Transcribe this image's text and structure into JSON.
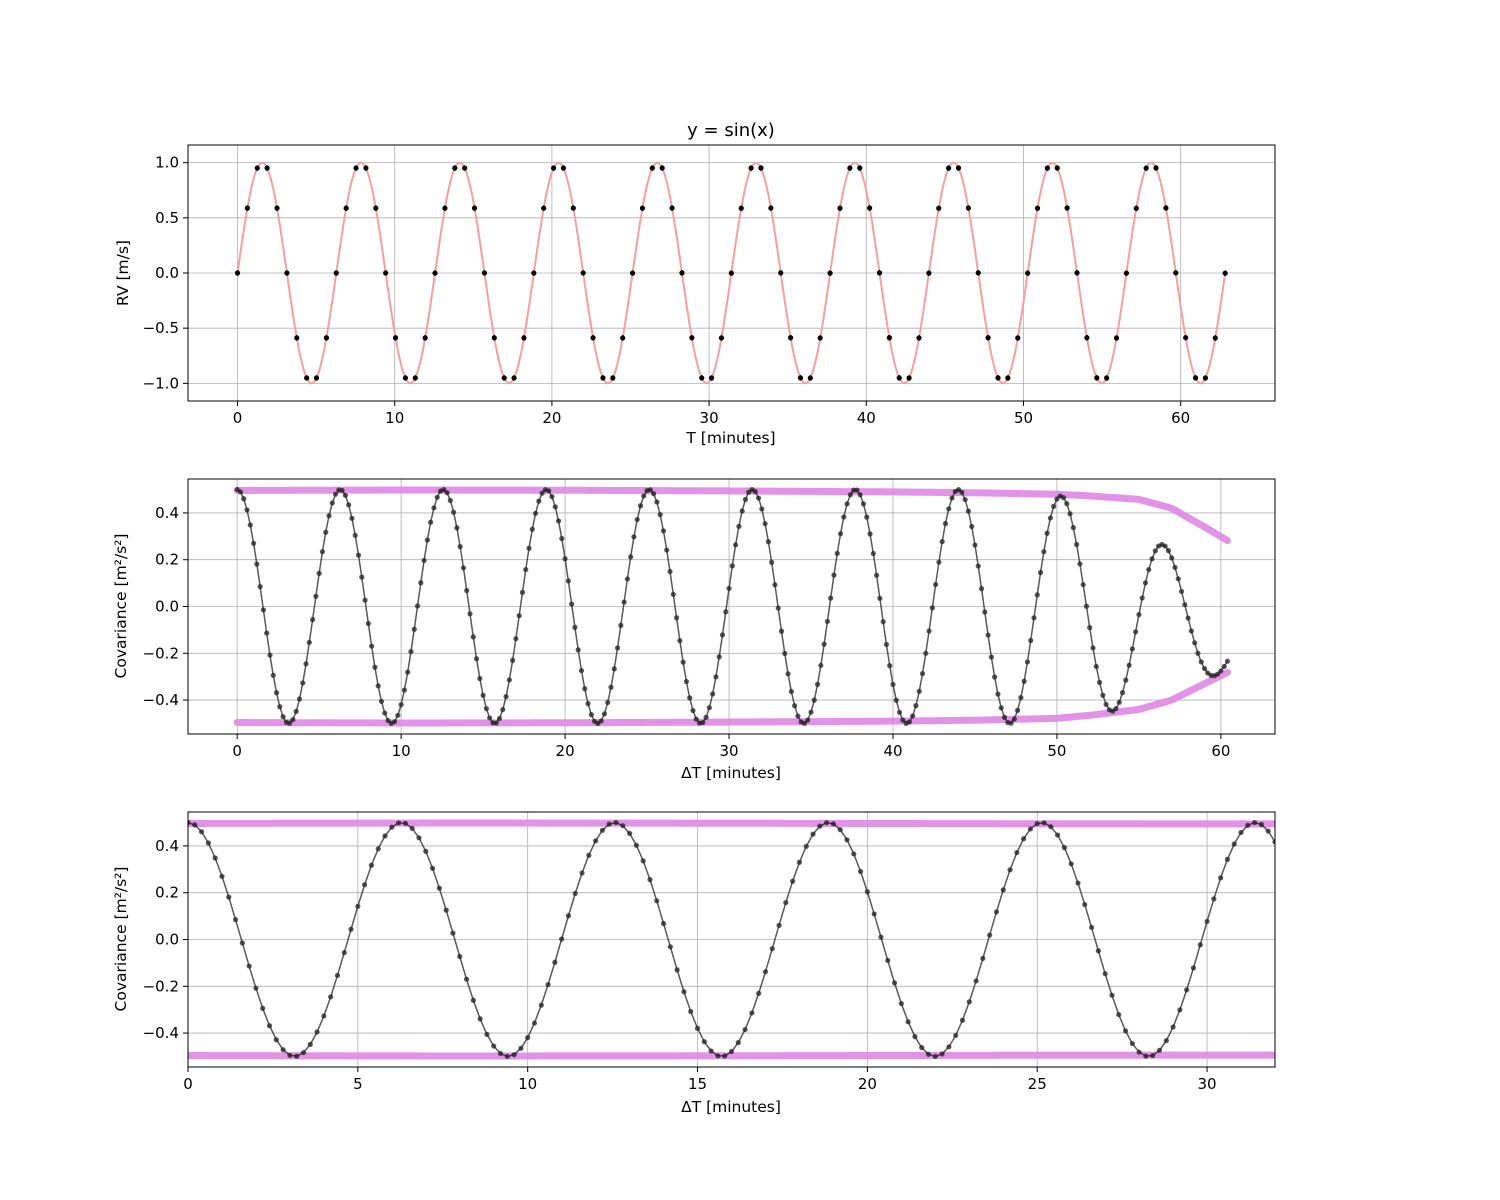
{
  "chart_data": [
    {
      "type": "scatter",
      "title": "y = sin(x)",
      "xlabel": "T [minutes]",
      "ylabel": "RV [m/s]",
      "xlim": [
        -3.15,
        66.0
      ],
      "ylim": [
        -1.16,
        1.16
      ],
      "xticks": [
        0,
        10,
        20,
        30,
        40,
        50,
        60
      ],
      "xtick_labels": [
        "0",
        "10",
        "20",
        "30",
        "40",
        "50",
        "60"
      ],
      "yticks": [
        -1.0,
        -0.5,
        0.0,
        0.5,
        1.0
      ],
      "ytick_labels": [
        "−1.0",
        "−0.5",
        "0.0",
        "0.5",
        "1.0"
      ],
      "grid": true,
      "series": [
        {
          "kind": "model-line",
          "function": "sin(x)",
          "x_range": [
            0,
            62.83
          ],
          "color": "#f4a0a0"
        },
        {
          "kind": "errorbar-points",
          "function": "sin(x)",
          "x_start": 0,
          "x_step": 0.6283,
          "count": 101,
          "yerr": 0.025,
          "color": "#000000"
        }
      ]
    },
    {
      "type": "scatter",
      "title": "",
      "xlabel": "ΔT [minutes]",
      "ylabel": "Covariance [m²/s²]",
      "xlim": [
        -3.0,
        63.3
      ],
      "ylim": [
        -0.545,
        0.545
      ],
      "xticks": [
        0,
        10,
        20,
        30,
        40,
        50,
        60
      ],
      "xtick_labels": [
        "0",
        "10",
        "20",
        "30",
        "40",
        "50",
        "60"
      ],
      "yticks": [
        -0.4,
        -0.2,
        0.0,
        0.2,
        0.4
      ],
      "ytick_labels": [
        "−0.4",
        "−0.2",
        "0.0",
        "0.2",
        "0.4"
      ],
      "grid": true,
      "series": [
        {
          "kind": "envelope-band",
          "color": "#e08ce6",
          "upper": [
            [
              0,
              0.496
            ],
            [
              10,
              0.498
            ],
            [
              20,
              0.497
            ],
            [
              30,
              0.494
            ],
            [
              40,
              0.49
            ],
            [
              45,
              0.486
            ],
            [
              50,
              0.48
            ],
            [
              52,
              0.473
            ],
            [
              55,
              0.458
            ],
            [
              57,
              0.42
            ],
            [
              59,
              0.34
            ],
            [
              60.4,
              0.282
            ]
          ],
          "lower": [
            [
              0,
              -0.496
            ],
            [
              10,
              -0.498
            ],
            [
              20,
              -0.497
            ],
            [
              30,
              -0.494
            ],
            [
              40,
              -0.49
            ],
            [
              45,
              -0.486
            ],
            [
              50,
              -0.478
            ],
            [
              52,
              -0.465
            ],
            [
              55,
              -0.44
            ],
            [
              57,
              -0.4
            ],
            [
              59,
              -0.33
            ],
            [
              60.4,
              -0.282
            ]
          ]
        },
        {
          "kind": "autocovariance-points",
          "function": "0.5*cos(x)",
          "x_start": 0,
          "x_step": 0.2,
          "x_end": 60.4,
          "decay_start": 47,
          "color": "#222222"
        }
      ]
    },
    {
      "type": "scatter",
      "title": "",
      "xlabel": "ΔT [minutes]",
      "ylabel": "Covariance [m²/s²]",
      "xlim": [
        0,
        32.0
      ],
      "ylim": [
        -0.545,
        0.545
      ],
      "xticks": [
        0,
        5,
        10,
        15,
        20,
        25,
        30
      ],
      "xtick_labels": [
        "0",
        "5",
        "10",
        "15",
        "20",
        "25",
        "30"
      ],
      "yticks": [
        -0.4,
        -0.2,
        0.0,
        0.2,
        0.4
      ],
      "ytick_labels": [
        "−0.4",
        "−0.2",
        "0.0",
        "0.2",
        "0.4"
      ],
      "grid": true,
      "series": [
        {
          "kind": "envelope-band",
          "color": "#e08ce6",
          "upper": [
            [
              0,
              0.496
            ],
            [
              8,
              0.498
            ],
            [
              16,
              0.497
            ],
            [
              24,
              0.495
            ],
            [
              32,
              0.494
            ]
          ],
          "lower": [
            [
              0,
              -0.496
            ],
            [
              8,
              -0.498
            ],
            [
              16,
              -0.497
            ],
            [
              24,
              -0.495
            ],
            [
              32,
              -0.494
            ]
          ]
        },
        {
          "kind": "autocovariance-points",
          "function": "0.5*cos(x)",
          "x_start": 0,
          "x_step": 0.2,
          "x_end": 32.0,
          "decay_start": 999,
          "color": "#222222"
        }
      ]
    }
  ]
}
